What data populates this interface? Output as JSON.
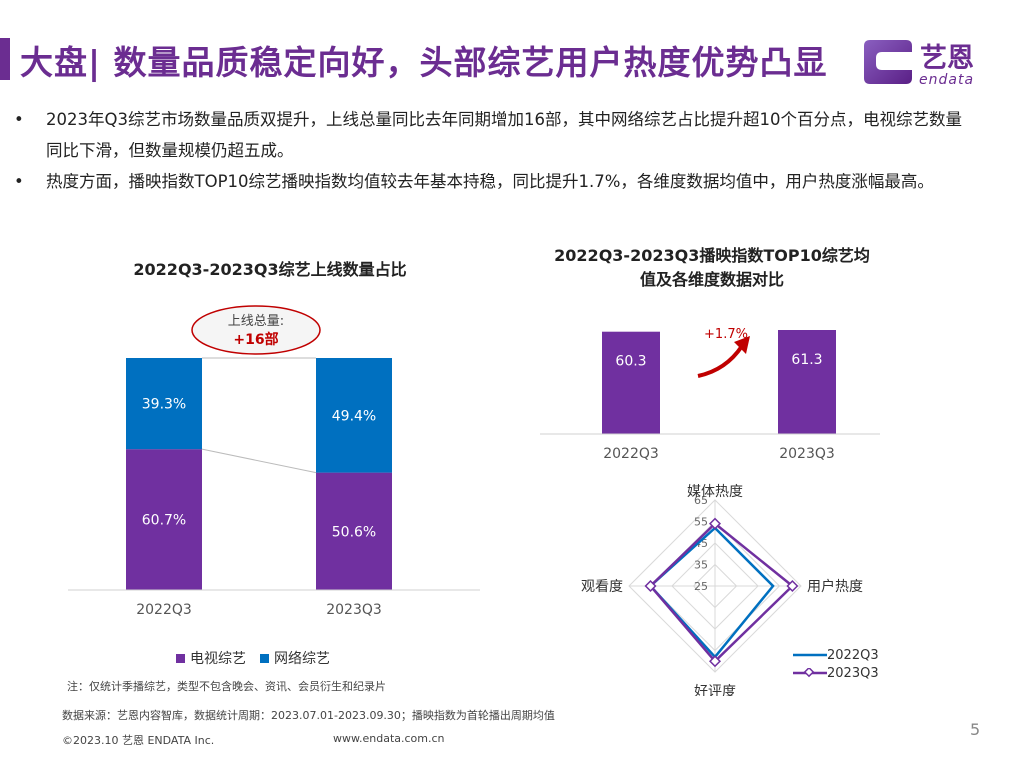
{
  "header": {
    "title": "大盘| 数量品质稳定向好，头部综艺用户热度优势凸显",
    "logo_cn": "艺恩",
    "logo_en": "endata"
  },
  "bullets": [
    {
      "symbol": "•",
      "text": "2023年Q3综艺市场数量品质双提升，上线总量同比去年同期增加16部，其中网络综艺占比提升超10个百分点，电视综艺数量同比下滑，但数量规模仍超五成。"
    },
    {
      "symbol": "•",
      "text": "热度方面，播映指数TOP10综艺播映指数均值较去年基本持稳，同比提升1.7%，各维度数据均值中，用户热度涨幅最高。"
    }
  ],
  "colors": {
    "purple": "#7030a0",
    "blue": "#0070c0",
    "title": "#6b2d91",
    "red": "#c00000"
  },
  "chart_data": [
    {
      "type": "bar",
      "stacked": true,
      "title": "2022Q3-2023Q3综艺上线数量占比",
      "categories": [
        "2022Q3",
        "2023Q3"
      ],
      "series": [
        {
          "name": "电视综艺",
          "values": [
            60.7,
            50.6
          ],
          "labels": [
            "60.7%",
            "50.6%"
          ],
          "color": "#7030a0"
        },
        {
          "name": "网络综艺",
          "values": [
            39.3,
            49.4
          ],
          "labels": [
            "39.3%",
            "49.4%"
          ],
          "color": "#0070c0"
        }
      ],
      "ylim": [
        0,
        100
      ],
      "callout": {
        "line1": "上线总量:",
        "line2": "+16部"
      }
    },
    {
      "type": "bar",
      "title": "2022Q3-2023Q3播映指数TOP10综艺均值及各维度数据对比",
      "title_line1": "2022Q3-2023Q3播映指数TOP10综艺均",
      "title_line2": "值及各维度数据对比",
      "categories": [
        "2022Q3",
        "2023Q3"
      ],
      "values": [
        60.3,
        61.3
      ],
      "labels": [
        "60.3",
        "61.3"
      ],
      "ylim": [
        0,
        61.3
      ],
      "growth_label": "+1.7%"
    },
    {
      "type": "radar",
      "axes": [
        "媒体热度",
        "用户热度",
        "好评度",
        "观看度"
      ],
      "ticks": [
        "25",
        "35",
        "45",
        "55",
        "65"
      ],
      "rlim": [
        25,
        65
      ],
      "series": [
        {
          "name": "2022Q3",
          "values": [
            52,
            52,
            58,
            55
          ],
          "color": "#0070c0"
        },
        {
          "name": "2023Q3",
          "values": [
            54,
            61,
            60,
            55
          ],
          "color": "#7030a0"
        }
      ]
    }
  ],
  "legend": {
    "tv": "电视综艺",
    "web": "网络综艺"
  },
  "footer": {
    "note": "注：仅统计季播综艺，类型不包含晚会、资讯、会员衍生和纪录片",
    "source": "数据来源：艺恩内容智库，数据统计周期：2023.07.01-2023.09.30；播映指数为首轮播出周期均值",
    "copyright": "©2023.10 艺恩 ENDATA Inc.",
    "site": "www.endata.com.cn",
    "page": "5"
  }
}
